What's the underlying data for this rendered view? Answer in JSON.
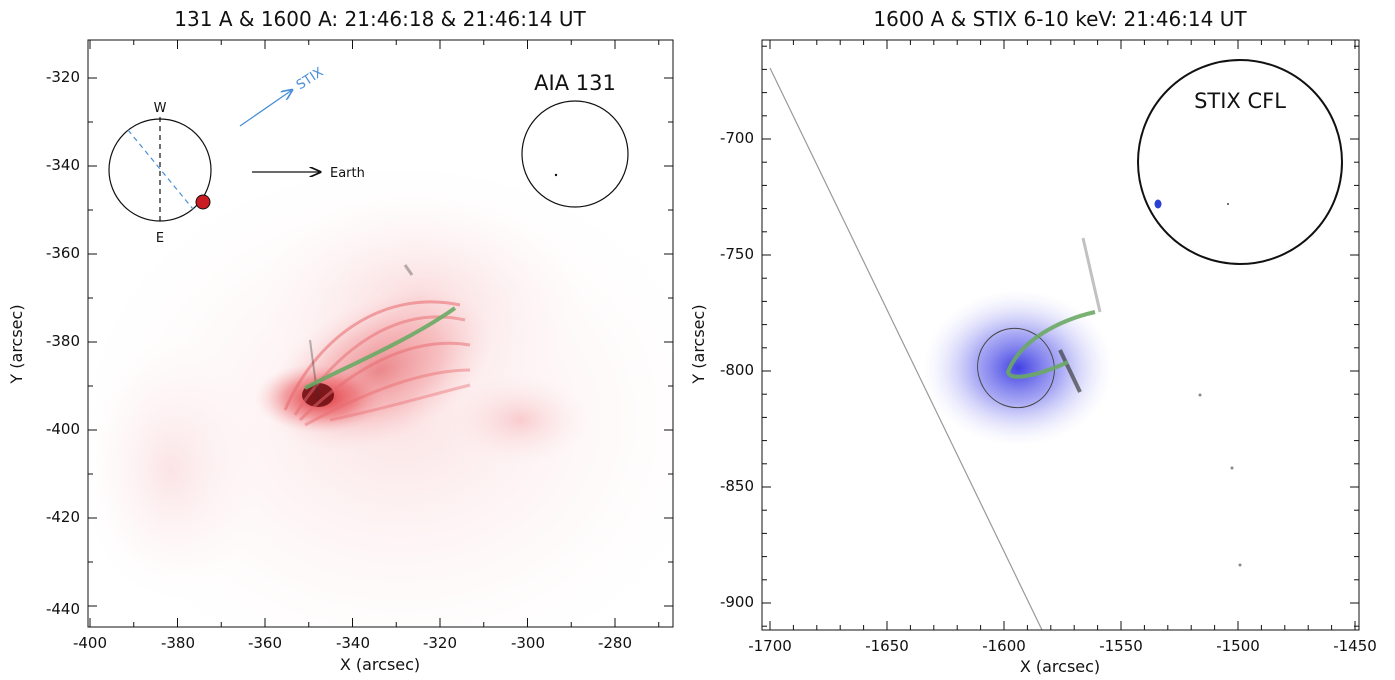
{
  "left_panel": {
    "title": "131 A & 1600 A: 21:46:18 & 21:46:14 UT",
    "xlabel": "X (arcsec)",
    "ylabel": "Y (arcsec)",
    "x_ticks": [
      "-400",
      "-380",
      "-360",
      "-340",
      "-320",
      "-300",
      "-280"
    ],
    "y_ticks": [
      "-320",
      "-340",
      "-360",
      "-380",
      "-400",
      "-420",
      "-440"
    ],
    "inset_label": "AIA 131",
    "orbit_labels": {
      "west": "W",
      "east": "E",
      "stix": "STIX",
      "earth": "Earth"
    },
    "colors": {
      "emission": "#e4202a",
      "arrow_stix": "#4a8fd8",
      "arrow_earth": "#111111",
      "loop": "#6aaa64",
      "solar_orbiter": "#cc1a22"
    }
  },
  "right_panel": {
    "title": "1600 A & STIX 6-10 keV: 21:46:14 UT",
    "xlabel": "X (arcsec)",
    "ylabel": "Y (arcsec)",
    "x_ticks": [
      "-1700",
      "-1650",
      "-1600",
      "-1550",
      "-1500",
      "-1450"
    ],
    "y_ticks": [
      "-700",
      "-750",
      "-800",
      "-850",
      "-900"
    ],
    "inset_label": "STIX CFL",
    "colors": {
      "hxr_source": "#4040e0",
      "loop": "#6aaa64",
      "cfl_spot": "#2a40d0"
    }
  }
}
